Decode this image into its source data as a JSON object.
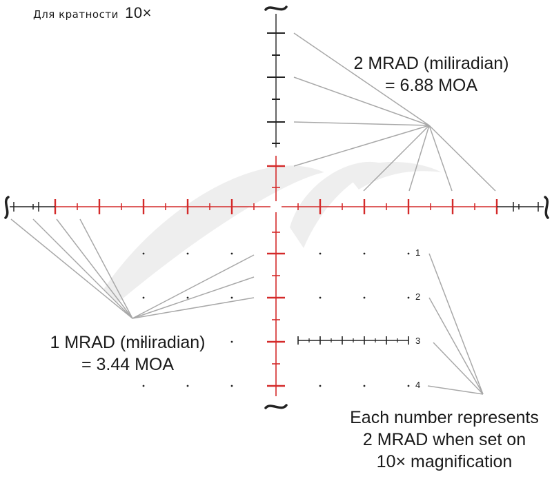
{
  "magnification_note": {
    "label": "Для  кратности",
    "value": "10×"
  },
  "callouts": {
    "two_mrad": {
      "line1": "2 MRAD (miliradian)",
      "line2": "= 6.88 MOA"
    },
    "one_mrad": {
      "line1": "1 MRAD (miliradian)",
      "line2": "= 3.44 MOA"
    },
    "each_number": {
      "line1": "Each number represents",
      "line2": "2 MRAD when set on",
      "line3": "10× magnification"
    }
  },
  "holdover_numbers": [
    "1",
    "2",
    "3",
    "4"
  ],
  "colors": {
    "reticle_red": "#d42a2a",
    "reticle_black": "#222222",
    "leader_gray": "#a8a8a8",
    "watermark": "#eeeeee",
    "text": "#1a1a1a"
  }
}
